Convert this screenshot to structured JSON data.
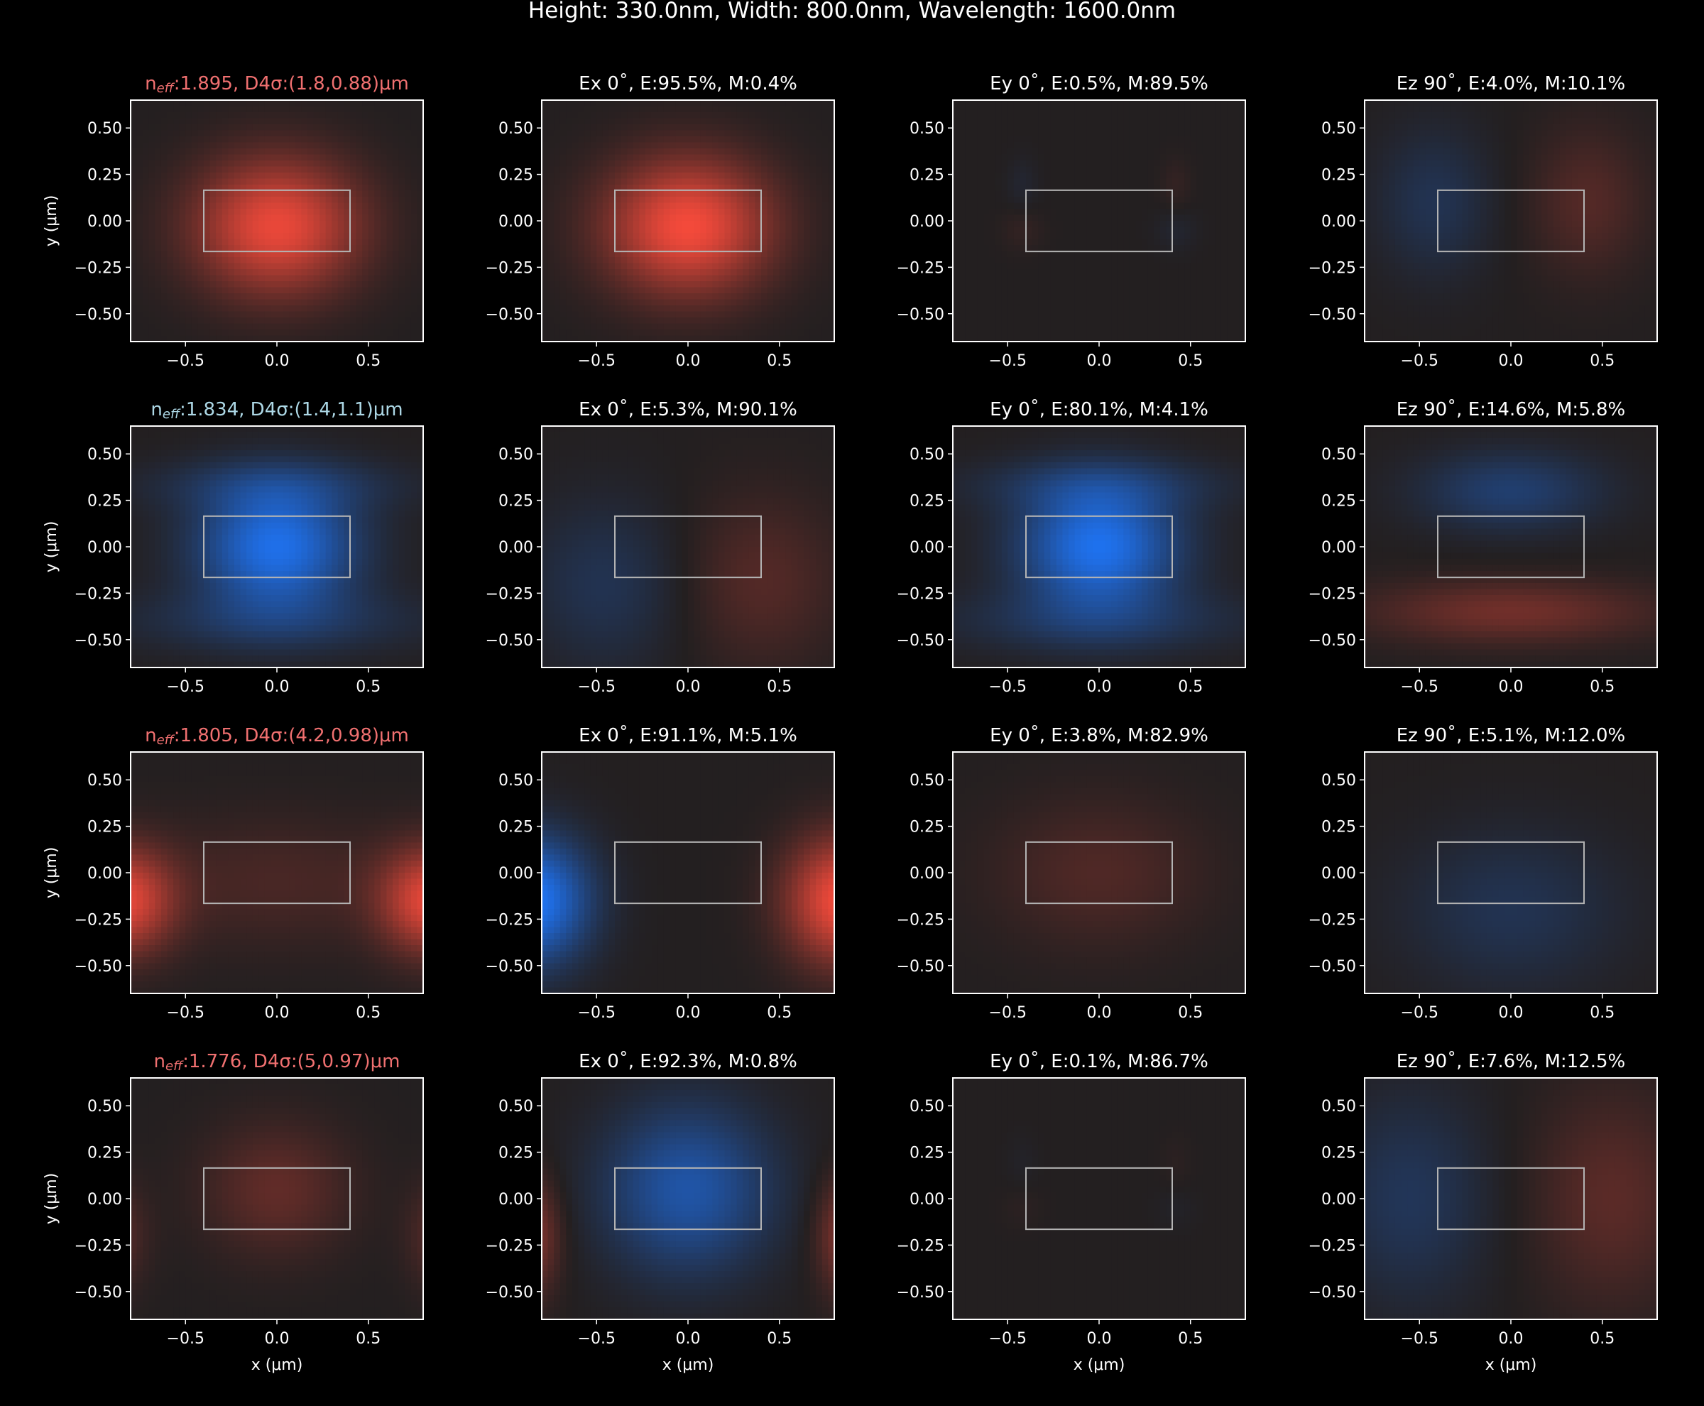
{
  "figure": {
    "title": "Height: 330.0nm, Width: 800.0nm, Wavelength: 1600.0nm"
  },
  "chart_data": {
    "type": "heatmap",
    "layout": {
      "rows": 4,
      "cols": 4
    },
    "x_axis": {
      "label": "x (μm)",
      "range": [
        -0.8,
        0.8
      ],
      "ticks": [
        -0.5,
        0.0,
        0.5
      ],
      "tick_labels": [
        "−0.5",
        "0.0",
        "0.5"
      ]
    },
    "y_axis": {
      "label": "y (μm)",
      "range": [
        -0.65,
        0.65
      ],
      "ticks": [
        0.5,
        0.25,
        0.0,
        -0.25,
        -0.5
      ],
      "tick_labels": [
        "0.50",
        "0.25",
        "0.00",
        "−0.25",
        "−0.50"
      ]
    },
    "waveguide": {
      "width_um": 0.8,
      "height_um": 0.33,
      "x": [
        -0.4,
        0.4
      ],
      "y": [
        -0.165,
        0.165
      ]
    },
    "colors": {
      "background": "#000000",
      "field_bg": "#231f20",
      "positive": "#ff4c3c",
      "negative": "#1e78ff",
      "frame": "#ffffff",
      "waveguide_outline": "#b4b4b4",
      "title_red": "#f07070",
      "title_blue": "#add8e6"
    },
    "modes": [
      {
        "neff_prefix": "n",
        "neff_sub": "eff",
        "neff_rest": ":1.895, D4σ:(1.8,0.88)μm",
        "title_color": "#f07070",
        "panels": [
          {
            "title": "",
            "field": "|E|",
            "sign": 1,
            "amplitude": 0.9,
            "kind": "te0"
          },
          {
            "title": "Ex 0˚, E:95.5%, M:0.4%",
            "field": "Ex",
            "sign": 1,
            "amplitude": 0.95,
            "kind": "te0"
          },
          {
            "title": "Ey 0˚, E:0.5%, M:89.5%",
            "field": "Ey",
            "sign": 1,
            "amplitude": 0.12,
            "kind": "quad"
          },
          {
            "title": "Ez 90˚, E:4.0%, M:10.1%",
            "field": "Ez",
            "sign": -1,
            "amplitude": 0.22,
            "kind": "odd_x"
          }
        ]
      },
      {
        "neff_prefix": "n",
        "neff_sub": "eff",
        "neff_rest": ":1.834, D4σ:(1.4,1.1)μm",
        "title_color": "#add8e6",
        "panels": [
          {
            "title": "",
            "field": "|E|",
            "sign": -1,
            "amplitude": 0.9,
            "kind": "tm0"
          },
          {
            "title": "Ex 0˚, E:5.3%, M:90.1%",
            "field": "Ex",
            "sign": 1,
            "amplitude": 0.22,
            "kind": "odd_x_low"
          },
          {
            "title": "Ey 0˚, E:80.1%, M:4.1%",
            "field": "Ey",
            "sign": -1,
            "amplitude": 0.92,
            "kind": "tm0"
          },
          {
            "title": "Ez 90˚, E:14.6%, M:5.8%",
            "field": "Ez",
            "sign": 1,
            "amplitude": 0.35,
            "kind": "odd_y"
          }
        ]
      },
      {
        "neff_prefix": "n",
        "neff_sub": "eff",
        "neff_rest": ":1.805, D4σ:(4.2,0.98)μm",
        "title_color": "#f07070",
        "panels": [
          {
            "title": "",
            "field": "|E|",
            "sign": 1,
            "amplitude": 0.85,
            "kind": "edges_even"
          },
          {
            "title": "Ex 0˚, E:91.1%, M:5.1%",
            "field": "Ex",
            "sign": 1,
            "amplitude": 0.95,
            "kind": "edges_odd"
          },
          {
            "title": "Ey 0˚, E:3.8%, M:82.9%",
            "field": "Ey",
            "sign": 1,
            "amplitude": 0.2,
            "kind": "center_soft"
          },
          {
            "title": "Ez 90˚, E:5.1%, M:12.0%",
            "field": "Ez",
            "sign": -1,
            "amplitude": 0.22,
            "kind": "center_low"
          }
        ]
      },
      {
        "neff_prefix": "n",
        "neff_sub": "eff",
        "neff_rest": ":1.776, D4σ:(5,0.97)μm",
        "title_color": "#f07070",
        "panels": [
          {
            "title": "",
            "field": "|E|",
            "sign": 1,
            "amplitude": 0.28,
            "kind": "center_edges"
          },
          {
            "title": "Ex 0˚, E:92.3%, M:0.8%",
            "field": "Ex",
            "sign": -1,
            "amplitude": 0.6,
            "kind": "center_edges_opp"
          },
          {
            "title": "Ey 0˚, E:0.1%, M:86.7%",
            "field": "Ey",
            "sign": 1,
            "amplitude": 0.06,
            "kind": "quad"
          },
          {
            "title": "Ez 90˚, E:7.6%, M:12.5%",
            "field": "Ez",
            "sign": 1,
            "amplitude": 0.25,
            "kind": "odd_x_wide"
          }
        ]
      }
    ]
  }
}
